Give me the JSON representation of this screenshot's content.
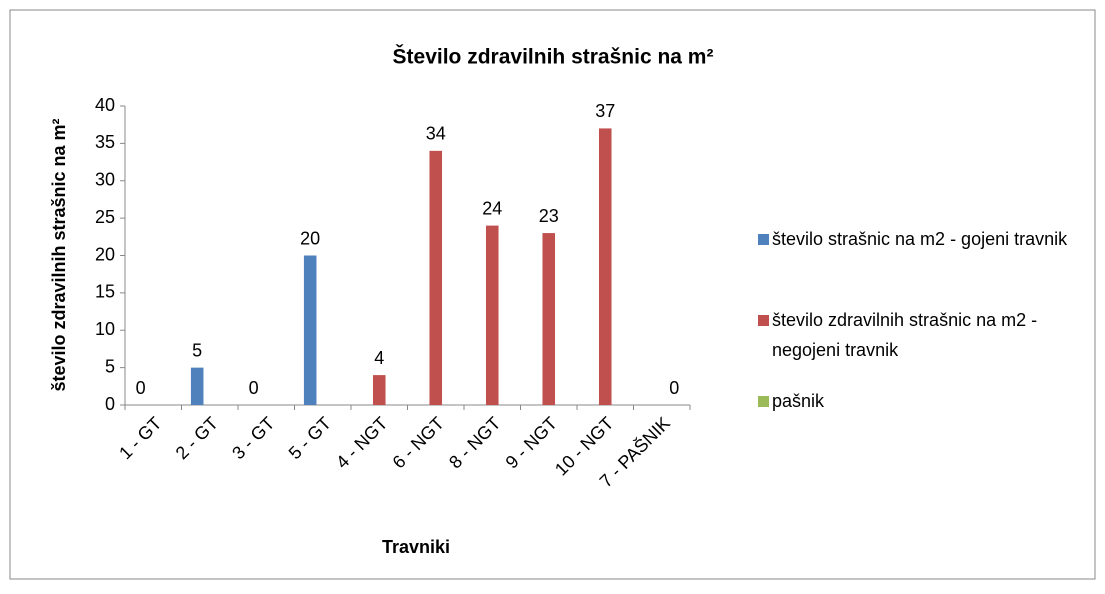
{
  "chart_data": {
    "type": "bar",
    "title": "Število zdravilnih strašnic na m²",
    "x_label": "Travniki",
    "y_label": "število zdravilnih strašnic na m²",
    "categories": [
      "1 - GT",
      "2 - GT",
      "3 - GT",
      "5 - GT",
      "4 - NGT",
      "6 - NGT",
      "8 - NGT",
      "9 - NGT",
      "10 - NGT",
      "7 - PAŠNIK"
    ],
    "series": [
      {
        "name": "število strašnic na m2 - gojeni travnik",
        "color": "#4f81bd",
        "values": [
          0,
          5,
          0,
          20,
          null,
          null,
          null,
          null,
          null,
          null
        ]
      },
      {
        "name": "število zdravilnih strašnic na m2 - negojeni travnik",
        "color": "#c0504d",
        "values": [
          null,
          null,
          null,
          null,
          4,
          34,
          24,
          23,
          37,
          null
        ]
      },
      {
        "name": "pašnik",
        "color": "#9bbb59",
        "values": [
          null,
          null,
          null,
          null,
          null,
          null,
          null,
          null,
          null,
          0
        ]
      }
    ],
    "ylim": [
      0,
      40
    ],
    "yticks": [
      0,
      5,
      10,
      15,
      20,
      25,
      30,
      35,
      40
    ],
    "legend": "right"
  }
}
